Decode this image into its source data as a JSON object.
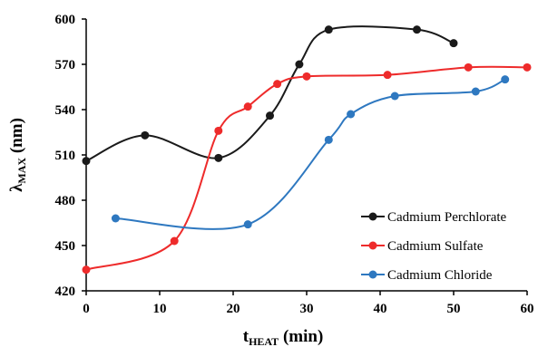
{
  "chart_data": {
    "type": "line",
    "xlabel": {
      "main": "t",
      "sub": "HEAT",
      "unit": " (min)"
    },
    "ylabel": {
      "main": "λ",
      "sub": "MAX",
      "unit": " (nm)"
    },
    "xlim": [
      0,
      60
    ],
    "ylim": [
      420,
      600
    ],
    "xticks": [
      0,
      10,
      20,
      30,
      40,
      50,
      60
    ],
    "yticks": [
      420,
      450,
      480,
      510,
      540,
      570,
      600
    ],
    "grid": false,
    "legend_position": "bottom-right",
    "series": [
      {
        "name": "Cadmium Perchlorate",
        "color": "#1a1a1a",
        "x": [
          0,
          8,
          18,
          25,
          29,
          33,
          45,
          50
        ],
        "y": [
          506,
          523,
          508,
          536,
          570,
          593,
          593,
          584
        ]
      },
      {
        "name": "Cadmium Sulfate",
        "color": "#ee2b2b",
        "x": [
          0,
          12,
          18,
          22,
          26,
          30,
          41,
          52,
          60
        ],
        "y": [
          434,
          453,
          526,
          542,
          557,
          562,
          563,
          568,
          568
        ]
      },
      {
        "name": "Cadmium Chloride",
        "color": "#2e78c0",
        "x": [
          4,
          22,
          33,
          36,
          42,
          53,
          57
        ],
        "y": [
          468,
          464,
          520,
          537,
          549,
          552,
          560
        ]
      }
    ]
  }
}
